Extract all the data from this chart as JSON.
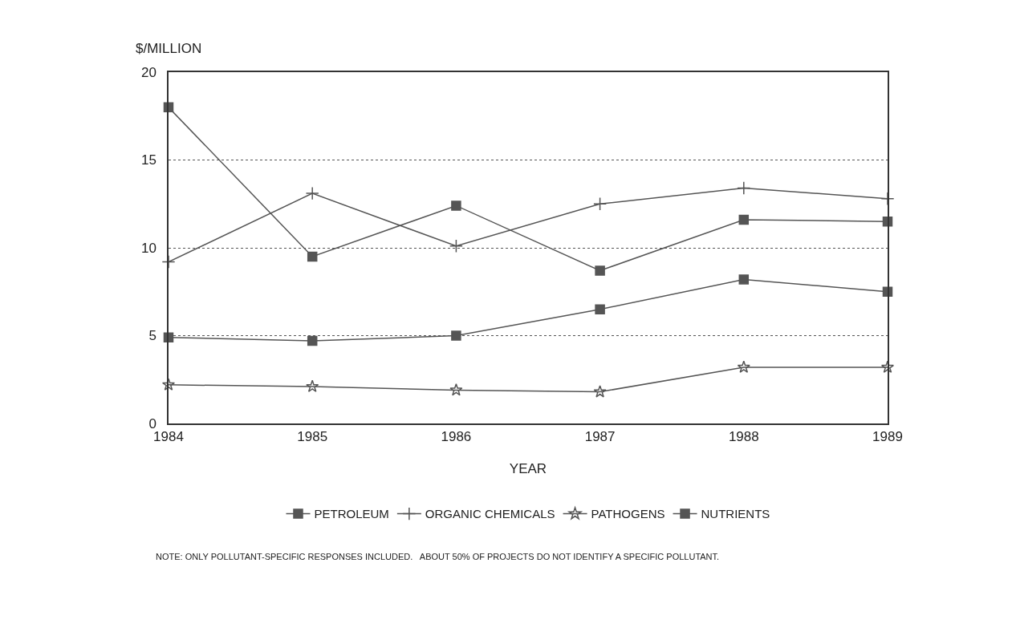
{
  "chart_data": {
    "type": "line",
    "ylabel": "$/MILLION",
    "xlabel": "YEAR",
    "x": [
      1984,
      1985,
      1986,
      1987,
      1988,
      1989
    ],
    "xlim": [
      1984,
      1989
    ],
    "xticks": [
      1984,
      1985,
      1986,
      1987,
      1988,
      1989
    ],
    "ylim": [
      0,
      20
    ],
    "yticks": [
      0,
      5,
      10,
      15,
      20
    ],
    "grid": "y",
    "legend": "bottom",
    "line_style": "solid",
    "series": [
      {
        "name": "PETROLEUM",
        "color": "#555555",
        "marker": "square",
        "values": [
          18,
          9.5,
          12.4,
          8.7,
          11.6,
          11.5
        ]
      },
      {
        "name": "ORGANIC CHEMICALS",
        "color": "#555555",
        "marker": "cross",
        "values": [
          9.2,
          13.1,
          10.1,
          12.5,
          13.4,
          12.8
        ]
      },
      {
        "name": "PATHOGENS",
        "color": "#555555",
        "marker": "star",
        "values": [
          2.2,
          2.1,
          1.9,
          1.8,
          3.2,
          3.2
        ]
      },
      {
        "name": "NUTRIENTS",
        "color": "#555555",
        "marker": "square",
        "values": [
          4.9,
          4.7,
          5.0,
          6.5,
          8.2,
          7.5
        ]
      }
    ],
    "annotations": [
      "NOTE: ONLY POLLUTANT-SPECIFIC RESPONSES INCLUDED.   ABOUT 50% OF PROJECTS DO NOT IDENTIFY A SPECIFIC POLLUTANT."
    ]
  }
}
